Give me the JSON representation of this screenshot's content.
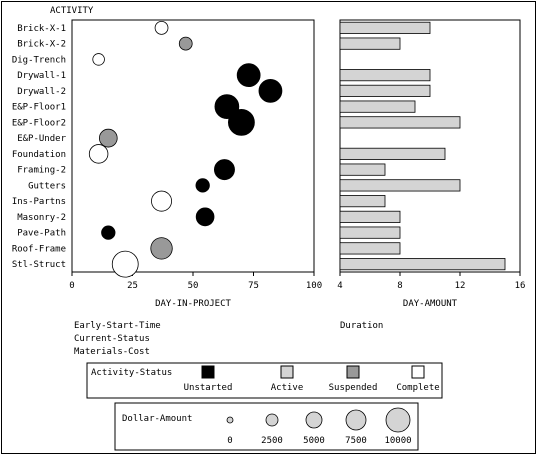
{
  "chart_data": [
    {
      "type": "scatter",
      "title": "ACTIVITY",
      "xlabel": "DAY-IN-PROJECT",
      "xlim": [
        0,
        100
      ],
      "xticks": [
        0,
        25,
        50,
        75,
        100
      ],
      "categories": [
        "Brick-X-1",
        "Brick-X-2",
        "Dig-Trench",
        "Drywall-1",
        "Drywall-2",
        "E&P-Floor1",
        "E&P-Floor2",
        "E&P-Under",
        "Foundation",
        "Framing-2",
        "Gutters",
        "Ins-Partns",
        "Masonry-2",
        "Pave-Path",
        "Roof-Frame",
        "Stl-Struct"
      ],
      "points": [
        {
          "activity": "Brick-X-1",
          "day": 37,
          "status": "Complete",
          "cost": 1200
        },
        {
          "activity": "Brick-X-2",
          "day": 47,
          "status": "Suspended",
          "cost": 1200
        },
        {
          "activity": "Dig-Trench",
          "day": 11,
          "status": "Complete",
          "cost": 800
        },
        {
          "activity": "Drywall-1",
          "day": 73,
          "status": "Unstarted",
          "cost": 7200
        },
        {
          "activity": "Drywall-2",
          "day": 82,
          "status": "Unstarted",
          "cost": 7200
        },
        {
          "activity": "E&P-Floor1",
          "day": 64,
          "status": "Unstarted",
          "cost": 8000
        },
        {
          "activity": "E&P-Floor2",
          "day": 70,
          "status": "Unstarted",
          "cost": 10000
        },
        {
          "activity": "E&P-Under",
          "day": 15,
          "status": "Suspended",
          "cost": 3500
        },
        {
          "activity": "Foundation",
          "day": 11,
          "status": "Complete",
          "cost": 4000
        },
        {
          "activity": "Framing-2",
          "day": 63,
          "status": "Unstarted",
          "cost": 5000
        },
        {
          "activity": "Gutters",
          "day": 54,
          "status": "Unstarted",
          "cost": 1400
        },
        {
          "activity": "Ins-Partns",
          "day": 37,
          "status": "Complete",
          "cost": 5000
        },
        {
          "activity": "Masonry-2",
          "day": 55,
          "status": "Unstarted",
          "cost": 3500
        },
        {
          "activity": "Pave-Path",
          "day": 15,
          "status": "Unstarted",
          "cost": 1400
        },
        {
          "activity": "Roof-Frame",
          "day": 37,
          "status": "Suspended",
          "cost": 6000
        },
        {
          "activity": "Stl-Struct",
          "day": 22,
          "status": "Complete",
          "cost": 10000
        }
      ]
    },
    {
      "type": "bar",
      "xlabel": "DAY-AMOUNT",
      "xlim": [
        4,
        16
      ],
      "xticks": [
        4,
        8,
        12,
        16
      ],
      "categories": [
        "Brick-X-1",
        "Brick-X-2",
        "Dig-Trench",
        "Drywall-1",
        "Drywall-2",
        "E&P-Floor1",
        "E&P-Floor2",
        "E&P-Under",
        "Foundation",
        "Framing-2",
        "Gutters",
        "Ins-Partns",
        "Masonry-2",
        "Pave-Path",
        "Roof-Frame",
        "Stl-Struct"
      ],
      "values": [
        10,
        8,
        null,
        10,
        10,
        9,
        12,
        null,
        11,
        7,
        12,
        7,
        8,
        8,
        8,
        15
      ]
    }
  ],
  "header": {
    "axis_title": "ACTIVITY"
  },
  "notes": {
    "left_lines": [
      "Early-Start-Time",
      "Current-Status",
      "Materials-Cost"
    ],
    "right_line": "Duration"
  },
  "status_legend": {
    "title": "Activity-Status",
    "items": [
      {
        "label": "Unstarted",
        "color": "#000000"
      },
      {
        "label": "Active",
        "color": "#d4d4d4"
      },
      {
        "label": "Suspended",
        "color": "#999999"
      },
      {
        "label": "Complete",
        "color": "#ffffff"
      }
    ]
  },
  "size_legend": {
    "title": "Dollar-Amount",
    "items": [
      "0",
      "2500",
      "5000",
      "7500",
      "10000"
    ]
  },
  "colors": {
    "bar_fill": "#d4d4d4",
    "unstarted": "#000000",
    "suspended": "#999999",
    "complete": "#ffffff"
  }
}
